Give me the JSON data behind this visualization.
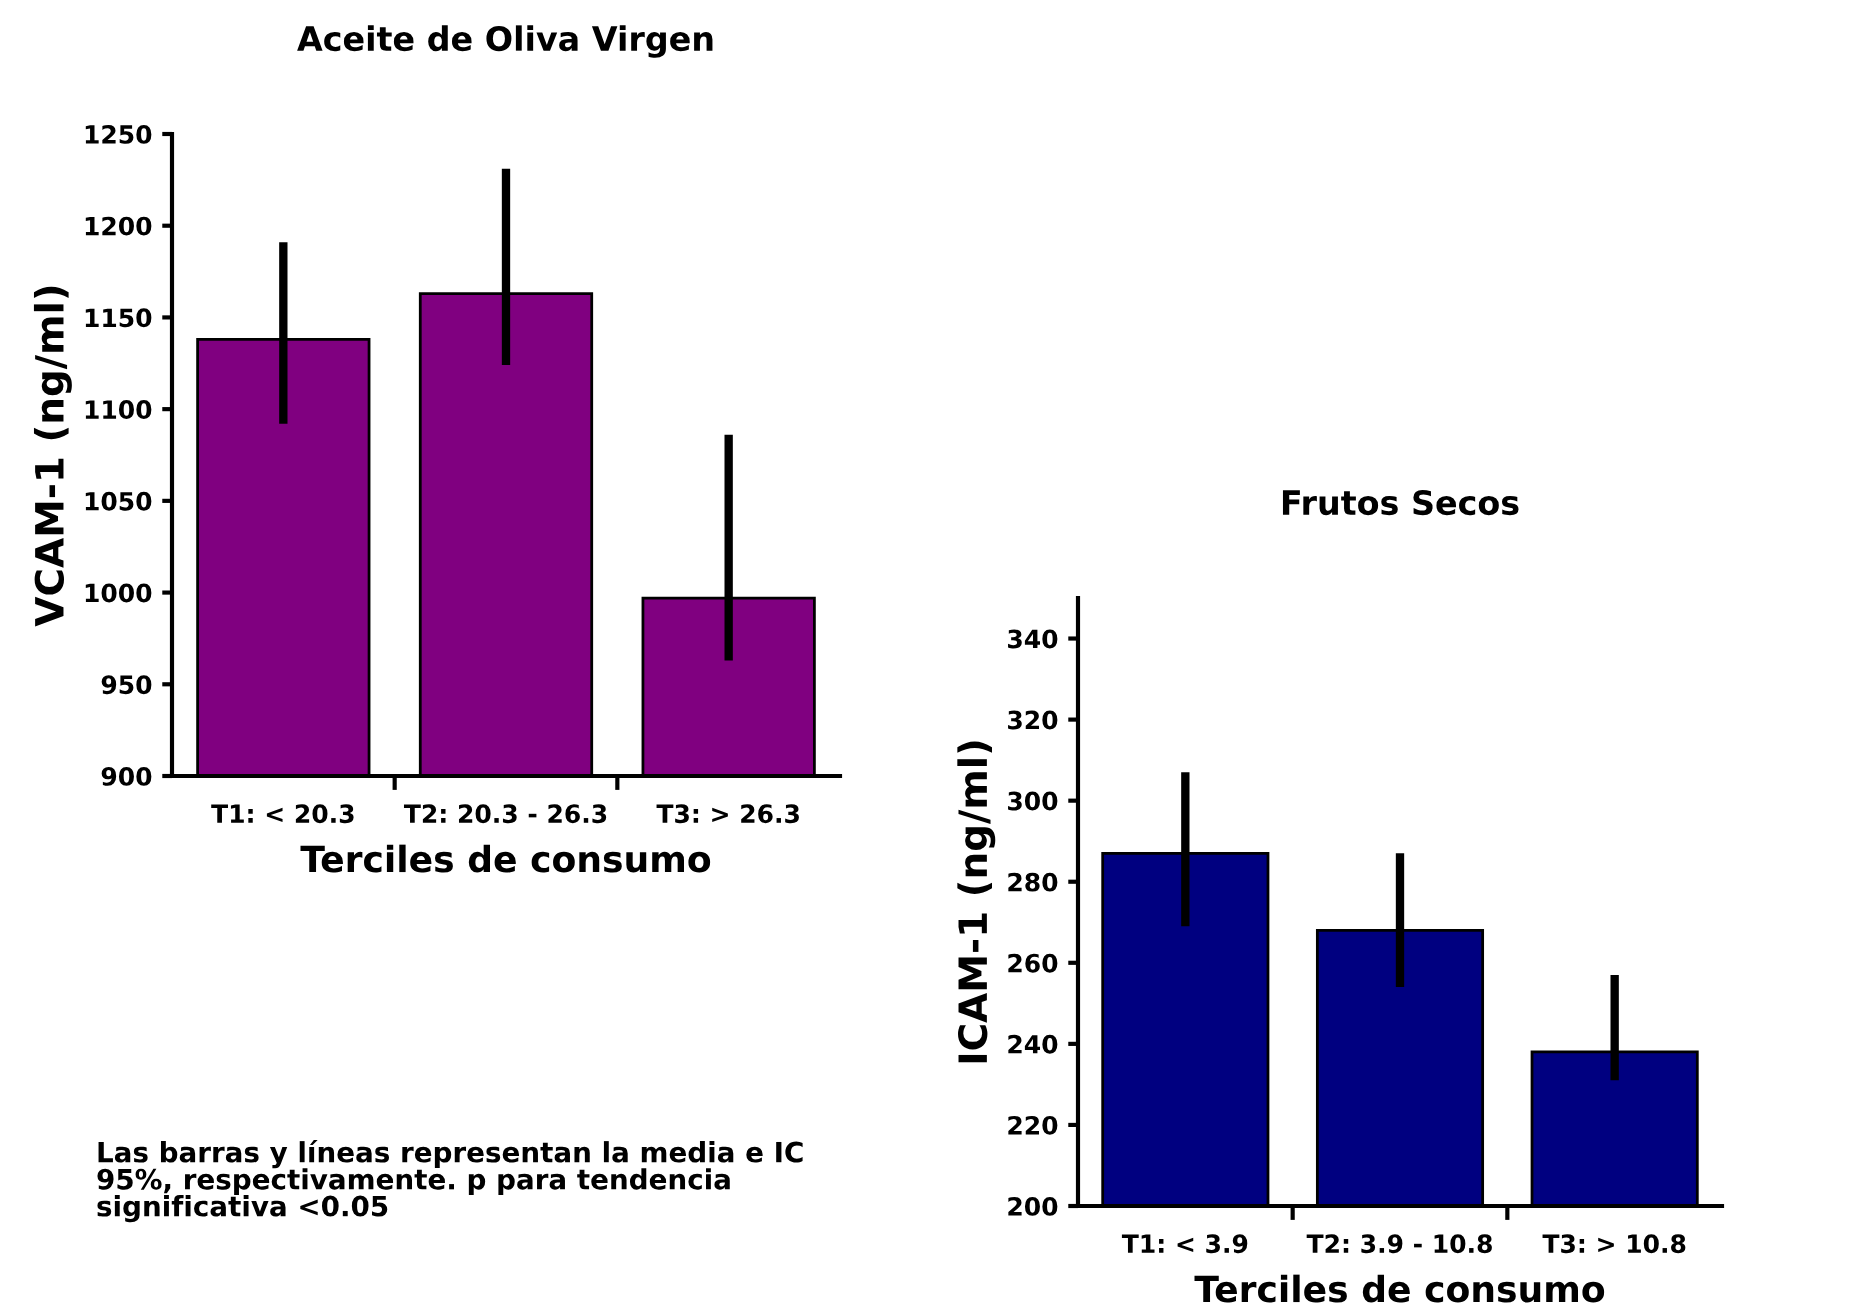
{
  "chart_data": [
    {
      "type": "bar",
      "title": "Aceite de Oliva Virgen",
      "xlabel": "Terciles de consumo",
      "ylabel": "VCAM-1 (ng/ml)",
      "categories": [
        "T1: < 20.3",
        "T2: 20.3 - 26.3",
        "T3: > 26.3"
      ],
      "values": [
        1138,
        1163,
        997
      ],
      "errors": [
        [
          1092,
          1191
        ],
        [
          1124,
          1231
        ],
        [
          963,
          1086
        ]
      ],
      "color": "#800080",
      "ylim": [
        900,
        1250
      ],
      "yticks": [
        900,
        950,
        1000,
        1050,
        1100,
        1150,
        1200,
        1250
      ],
      "grid": false,
      "legend": false,
      "annotations": [
        "Las barras y líneas representan la media e IC\n95%, respectivamente. p para tendencia\nsignificativa <0.05"
      ]
    },
    {
      "type": "bar",
      "title": "Frutos Secos",
      "xlabel": "Terciles de consumo",
      "ylabel": "ICAM-1 (ng/ml)",
      "categories": [
        "T1: < 3.9",
        "T2: 3.9 - 10.8",
        "T3: > 10.8"
      ],
      "values": [
        287,
        268,
        238
      ],
      "errors": [
        [
          269,
          307
        ],
        [
          254,
          287
        ],
        [
          231,
          257
        ]
      ],
      "color": "#000080",
      "ylim": [
        200,
        350
      ],
      "yticks": [
        200,
        220,
        240,
        260,
        280,
        300,
        320,
        340
      ],
      "grid": false,
      "legend": false
    }
  ]
}
